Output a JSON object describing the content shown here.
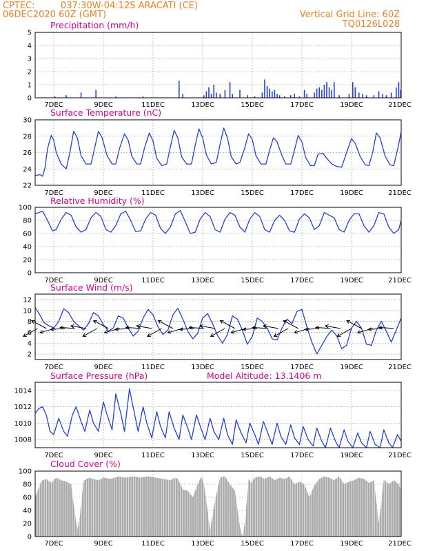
{
  "header": {
    "source": "CPTEC:",
    "location": "037:30W-04:12S   ARACATI (CE)",
    "run": "06DEC2020 60Z (GMT)",
    "grid_line": "Vertical Grid Line: 60Z",
    "code": "TQ0126L028"
  },
  "colors": {
    "header": "#f08020",
    "title": "#e0008c",
    "series": "#1f3fe0",
    "cloud": "#aaaaaa",
    "wind_vector": "#000000"
  },
  "chart_data": [
    {
      "id": "precip",
      "type": "bar",
      "title": "Precipitation (mm/h)",
      "ylim": [
        0,
        5
      ],
      "yticks": [
        0,
        1,
        2,
        3,
        4,
        5
      ],
      "xlim": [
        6.25,
        21
      ],
      "xticks": [
        "7DEC",
        "9DEC",
        "11DEC",
        "13DEC",
        "15DEC",
        "17DEC",
        "19DEC",
        "21DEC"
      ],
      "grid": true,
      "values_day_mm": [
        [
          7.05,
          0.1
        ],
        [
          7.5,
          0.2
        ],
        [
          8.1,
          0.4
        ],
        [
          8.7,
          0.6
        ],
        [
          9.5,
          0.1
        ],
        [
          10.6,
          0.1
        ],
        [
          12.05,
          1.3
        ],
        [
          12.2,
          0.3
        ],
        [
          13.05,
          0.2
        ],
        [
          13.15,
          0.5
        ],
        [
          13.25,
          0.8
        ],
        [
          13.35,
          0.3
        ],
        [
          13.45,
          1.0
        ],
        [
          13.55,
          0.4
        ],
        [
          13.7,
          0.3
        ],
        [
          13.9,
          0.6
        ],
        [
          14.1,
          1.2
        ],
        [
          14.2,
          0.3
        ],
        [
          14.5,
          0.6
        ],
        [
          14.8,
          0.2
        ],
        [
          15.1,
          0.1
        ],
        [
          15.4,
          0.4
        ],
        [
          15.5,
          1.4
        ],
        [
          15.6,
          0.9
        ],
        [
          15.7,
          0.7
        ],
        [
          15.8,
          0.5
        ],
        [
          15.9,
          0.6
        ],
        [
          16.0,
          0.3
        ],
        [
          16.1,
          0.2
        ],
        [
          16.3,
          0.1
        ],
        [
          16.55,
          0.2
        ],
        [
          16.7,
          0.3
        ],
        [
          16.9,
          0.1
        ],
        [
          17.1,
          0.6
        ],
        [
          17.2,
          0.3
        ],
        [
          17.5,
          0.4
        ],
        [
          17.6,
          0.7
        ],
        [
          17.7,
          0.8
        ],
        [
          17.8,
          0.6
        ],
        [
          17.9,
          1.0
        ],
        [
          18.0,
          1.2
        ],
        [
          18.1,
          0.8
        ],
        [
          18.2,
          0.6
        ],
        [
          18.3,
          1.2
        ],
        [
          18.5,
          0.2
        ],
        [
          18.9,
          0.3
        ],
        [
          19.05,
          1.2
        ],
        [
          19.15,
          0.8
        ],
        [
          19.3,
          0.4
        ],
        [
          19.45,
          0.3
        ],
        [
          19.6,
          0.2
        ],
        [
          19.9,
          0.2
        ],
        [
          20.1,
          0.5
        ],
        [
          20.25,
          0.3
        ],
        [
          20.4,
          0.2
        ],
        [
          20.6,
          0.4
        ],
        [
          20.8,
          0.8
        ],
        [
          20.9,
          1.2
        ],
        [
          20.98,
          0.6
        ]
      ]
    },
    {
      "id": "temp",
      "type": "line",
      "title": "Surface Temperature (nC)",
      "ylim": [
        22,
        30
      ],
      "yticks": [
        22,
        24,
        26,
        28,
        30
      ],
      "xlim": [
        6.25,
        21
      ],
      "xticks": [
        "7DEC",
        "9DEC",
        "11DEC",
        "13DEC",
        "15DEC",
        "17DEC",
        "19DEC",
        "21DEC"
      ],
      "grid": true,
      "x_days": [
        6.25,
        6.45,
        6.55,
        6.65,
        6.75,
        6.9,
        7.0,
        7.1,
        7.3,
        7.5,
        7.65,
        7.8,
        7.95,
        8.1,
        8.3,
        8.5,
        8.65,
        8.8,
        8.95,
        9.15,
        9.35,
        9.5,
        9.65,
        9.85,
        10.0,
        10.15,
        10.35,
        10.5,
        10.65,
        10.85,
        11.0,
        11.15,
        11.35,
        11.55,
        11.7,
        11.85,
        12.0,
        12.15,
        12.35,
        12.55,
        12.7,
        12.85,
        13.0,
        13.15,
        13.35,
        13.55,
        13.7,
        13.85,
        14.0,
        14.15,
        14.35,
        14.5,
        14.7,
        14.85,
        15.0,
        15.15,
        15.35,
        15.55,
        15.7,
        15.85,
        16.0,
        16.2,
        16.35,
        16.55,
        16.7,
        16.85,
        17.0,
        17.15,
        17.35,
        17.5,
        17.65,
        17.85,
        18.0,
        18.2,
        18.4,
        18.6,
        18.8,
        19.0,
        19.15,
        19.35,
        19.55,
        19.7,
        19.85,
        20.0,
        20.15,
        20.35,
        20.55,
        20.7,
        20.85,
        21.0
      ],
      "values": [
        23.2,
        23.3,
        23.1,
        24.2,
        26.5,
        28.1,
        27.5,
        26.0,
        24.6,
        24.0,
        26.0,
        28.6,
        27.8,
        25.6,
        24.6,
        24.6,
        26.6,
        28.6,
        27.8,
        25.6,
        24.6,
        24.6,
        26.5,
        28.3,
        27.5,
        25.5,
        24.6,
        24.6,
        26.5,
        28.4,
        27.4,
        25.3,
        24.4,
        24.6,
        26.7,
        28.7,
        27.8,
        25.5,
        24.6,
        24.6,
        26.9,
        28.9,
        27.8,
        25.7,
        24.6,
        24.8,
        27.0,
        29.0,
        27.8,
        25.5,
        24.6,
        24.8,
        26.6,
        28.3,
        27.6,
        25.6,
        24.6,
        24.6,
        26.3,
        27.8,
        27.3,
        25.6,
        24.6,
        24.6,
        26.3,
        28.1,
        27.3,
        25.4,
        24.4,
        24.4,
        25.8,
        25.9,
        25.3,
        24.6,
        24.3,
        24.2,
        26.0,
        27.7,
        27.1,
        25.5,
        24.5,
        24.4,
        26.0,
        28.4,
        27.8,
        25.6,
        24.5,
        24.4,
        26.3,
        28.5
      ]
    },
    {
      "id": "rh",
      "type": "line",
      "title": "Relative Humidity (%)",
      "ylim": [
        0,
        100
      ],
      "yticks": [
        0,
        20,
        40,
        60,
        80,
        100
      ],
      "xlim": [
        6.25,
        21
      ],
      "xticks": [
        "7DEC",
        "9DEC",
        "11DEC",
        "13DEC",
        "15DEC",
        "17DEC",
        "19DEC",
        "21DEC"
      ],
      "grid": true,
      "x_days": [
        6.25,
        6.4,
        6.55,
        6.75,
        6.95,
        7.1,
        7.3,
        7.5,
        7.7,
        7.9,
        8.1,
        8.3,
        8.5,
        8.7,
        8.9,
        9.1,
        9.3,
        9.5,
        9.7,
        9.9,
        10.1,
        10.3,
        10.5,
        10.7,
        10.9,
        11.1,
        11.3,
        11.5,
        11.7,
        11.9,
        12.1,
        12.3,
        12.5,
        12.7,
        12.9,
        13.1,
        13.3,
        13.5,
        13.7,
        13.9,
        14.1,
        14.3,
        14.5,
        14.7,
        14.9,
        15.1,
        15.3,
        15.5,
        15.7,
        15.9,
        16.1,
        16.3,
        16.5,
        16.7,
        16.9,
        17.1,
        17.3,
        17.5,
        17.7,
        17.9,
        18.1,
        18.3,
        18.5,
        18.7,
        18.9,
        19.1,
        19.3,
        19.5,
        19.7,
        19.9,
        20.1,
        20.3,
        20.5,
        20.7,
        20.9,
        21.0
      ],
      "values": [
        90,
        92,
        94,
        80,
        64,
        66,
        82,
        92,
        88,
        70,
        62,
        66,
        84,
        92,
        86,
        66,
        62,
        72,
        90,
        94,
        80,
        63,
        64,
        82,
        92,
        88,
        68,
        60,
        70,
        90,
        95,
        78,
        60,
        62,
        82,
        92,
        86,
        66,
        62,
        82,
        92,
        88,
        70,
        62,
        82,
        92,
        86,
        66,
        62,
        80,
        88,
        80,
        64,
        62,
        82,
        90,
        84,
        66,
        72,
        92,
        88,
        84,
        66,
        62,
        80,
        90,
        90,
        72,
        62,
        72,
        92,
        90,
        70,
        60,
        66,
        80
      ]
    },
    {
      "id": "wind",
      "type": "line",
      "title": "Surface Wind (m/s)",
      "ylim": [
        1,
        13
      ],
      "yticks": [
        2,
        4,
        6,
        8,
        10,
        12
      ],
      "xlim": [
        6.25,
        21
      ],
      "xticks": [
        "7DEC",
        "9DEC",
        "11DEC",
        "13DEC",
        "15DEC",
        "17DEC",
        "19DEC",
        "21DEC"
      ],
      "grid": true,
      "x_days": [
        6.25,
        6.4,
        6.6,
        6.8,
        7.0,
        7.2,
        7.4,
        7.6,
        7.8,
        8.0,
        8.2,
        8.4,
        8.6,
        8.8,
        9.0,
        9.2,
        9.4,
        9.6,
        9.8,
        10.0,
        10.2,
        10.4,
        10.6,
        10.8,
        11.0,
        11.2,
        11.4,
        11.6,
        11.8,
        12.0,
        12.2,
        12.4,
        12.6,
        12.8,
        13.0,
        13.2,
        13.4,
        13.6,
        13.8,
        14.0,
        14.2,
        14.4,
        14.6,
        14.8,
        15.0,
        15.2,
        15.4,
        15.6,
        15.8,
        16.0,
        16.2,
        16.4,
        16.6,
        16.8,
        17.0,
        17.2,
        17.4,
        17.6,
        17.8,
        18.0,
        18.2,
        18.4,
        18.6,
        18.8,
        19.0,
        19.2,
        19.4,
        19.6,
        19.8,
        20.0,
        20.2,
        20.4,
        20.6,
        20.8,
        21.0
      ],
      "values": [
        10.5,
        9.5,
        7.8,
        7.2,
        6.8,
        8.0,
        10.3,
        9.6,
        8.0,
        7.2,
        6.4,
        7.6,
        9.6,
        9.0,
        7.4,
        6.2,
        6.8,
        9.0,
        8.6,
        6.8,
        5.3,
        6.2,
        8.6,
        10.2,
        9.2,
        7.0,
        5.6,
        6.4,
        9.2,
        10.4,
        8.4,
        6.2,
        4.8,
        5.8,
        8.6,
        9.4,
        7.6,
        5.4,
        4.0,
        5.6,
        9.0,
        8.4,
        6.4,
        3.8,
        5.2,
        8.6,
        8.0,
        6.8,
        4.8,
        4.6,
        6.8,
        8.4,
        7.6,
        9.8,
        10.2,
        7.0,
        4.2,
        2.0,
        3.6,
        5.2,
        6.4,
        5.4,
        3.0,
        3.6,
        6.8,
        8.0,
        6.8,
        3.8,
        3.6,
        6.4,
        8.0,
        6.2,
        4.2,
        6.4,
        8.6
      ],
      "vectors_day": [
        6.35,
        6.7,
        7.05,
        7.45,
        7.85,
        8.3,
        8.75,
        9.2,
        9.65,
        10.05,
        10.5,
        10.95,
        11.35,
        11.8,
        12.2,
        12.65,
        13.05,
        13.5,
        13.9,
        14.3,
        14.75,
        15.2,
        15.6,
        16.05,
        16.45,
        16.85,
        17.3,
        17.7,
        18.15,
        18.55,
        19.0,
        19.4,
        19.85,
        20.25,
        20.7
      ]
    },
    {
      "id": "pressure",
      "type": "line",
      "title": "Surface Pressure (hPa)",
      "annotation": "Model Altitude: 13.1406 m",
      "ylim": [
        1007,
        1015
      ],
      "yticks": [
        1008,
        1010,
        1012,
        1014
      ],
      "xlim": [
        6.25,
        21
      ],
      "xticks": [
        "7DEC",
        "9DEC",
        "11DEC",
        "13DEC",
        "15DEC",
        "17DEC",
        "19DEC",
        "21DEC"
      ],
      "grid": true,
      "x_days": [
        6.25,
        6.4,
        6.55,
        6.7,
        6.85,
        7.0,
        7.2,
        7.4,
        7.55,
        7.75,
        7.9,
        8.1,
        8.25,
        8.45,
        8.6,
        8.8,
        9.0,
        9.15,
        9.35,
        9.5,
        9.7,
        9.85,
        10.05,
        10.25,
        10.4,
        10.6,
        10.75,
        10.95,
        11.15,
        11.3,
        11.5,
        11.65,
        11.85,
        12.05,
        12.2,
        12.4,
        12.55,
        12.75,
        12.95,
        13.1,
        13.3,
        13.45,
        13.65,
        13.85,
        14.0,
        14.2,
        14.35,
        14.55,
        14.75,
        14.9,
        15.1,
        15.25,
        15.45,
        15.65,
        15.8,
        16.0,
        16.15,
        16.35,
        16.55,
        16.7,
        16.9,
        17.05,
        17.25,
        17.45,
        17.6,
        17.8,
        17.95,
        18.15,
        18.35,
        18.5,
        18.7,
        18.85,
        19.05,
        19.25,
        19.4,
        19.6,
        19.75,
        19.95,
        20.15,
        20.3,
        20.5,
        20.65,
        20.85,
        21.0
      ],
      "values": [
        1011.2,
        1011.8,
        1012.0,
        1011.0,
        1009.0,
        1008.6,
        1010.6,
        1009.0,
        1008.4,
        1011.0,
        1012.0,
        1010.2,
        1009.0,
        1011.6,
        1010.0,
        1009.0,
        1012.6,
        1011.0,
        1009.2,
        1013.6,
        1011.2,
        1009.0,
        1014.2,
        1011.2,
        1009.0,
        1012.0,
        1010.0,
        1008.2,
        1011.4,
        1009.6,
        1008.2,
        1011.4,
        1009.4,
        1008.0,
        1011.0,
        1009.4,
        1008.0,
        1011.0,
        1009.2,
        1008.0,
        1010.6,
        1009.0,
        1008.0,
        1010.6,
        1008.6,
        1007.4,
        1010.4,
        1008.8,
        1007.6,
        1010.0,
        1008.6,
        1007.4,
        1010.2,
        1008.6,
        1007.4,
        1010.0,
        1008.4,
        1007.4,
        1009.8,
        1008.2,
        1007.4,
        1009.6,
        1008.0,
        1007.2,
        1009.4,
        1007.8,
        1007.0,
        1009.4,
        1007.8,
        1006.9,
        1009.2,
        1007.8,
        1006.8,
        1008.8,
        1007.6,
        1006.8,
        1009.0,
        1007.4,
        1006.9,
        1009.2,
        1007.6,
        1007.0,
        1008.6,
        1007.8
      ]
    },
    {
      "id": "cloud",
      "type": "area",
      "title": "Cloud Cover (%)",
      "ylim": [
        0,
        100
      ],
      "yticks": [
        0,
        20,
        40,
        60,
        80,
        100
      ],
      "xlim": [
        6.25,
        21
      ],
      "xticks": [
        "7DEC",
        "9DEC",
        "11DEC",
        "13DEC",
        "15DEC",
        "17DEC",
        "19DEC",
        "21DEC"
      ],
      "grid": true,
      "x_days": [
        6.25,
        6.35,
        6.5,
        6.7,
        6.9,
        7.1,
        7.3,
        7.5,
        7.7,
        7.85,
        7.95,
        8.05,
        8.2,
        8.4,
        8.6,
        8.8,
        9.0,
        9.3,
        9.6,
        9.9,
        10.2,
        10.5,
        10.8,
        11.1,
        11.4,
        11.7,
        11.9,
        12.0,
        12.2,
        12.4,
        12.6,
        12.8,
        12.95,
        13.05,
        13.2,
        13.3,
        13.5,
        13.7,
        13.9,
        14.1,
        14.3,
        14.5,
        14.6,
        14.7,
        14.85,
        14.95,
        15.1,
        15.3,
        15.5,
        15.7,
        15.9,
        16.1,
        16.3,
        16.5,
        16.7,
        16.9,
        17.1,
        17.3,
        17.5,
        17.7,
        17.9,
        18.1,
        18.3,
        18.5,
        18.7,
        18.9,
        19.1,
        19.3,
        19.5,
        19.7,
        19.9,
        20.1,
        20.3,
        20.5,
        20.7,
        20.9,
        21.0
      ],
      "values": [
        60,
        70,
        85,
        88,
        82,
        90,
        86,
        84,
        80,
        35,
        10,
        30,
        85,
        90,
        88,
        86,
        90,
        88,
        92,
        90,
        92,
        90,
        92,
        90,
        88,
        86,
        90,
        88,
        72,
        70,
        60,
        80,
        92,
        80,
        40,
        10,
        55,
        90,
        92,
        80,
        70,
        15,
        0,
        20,
        88,
        82,
        90,
        92,
        88,
        92,
        86,
        90,
        88,
        92,
        80,
        84,
        80,
        60,
        78,
        88,
        92,
        90,
        86,
        92,
        80,
        84,
        86,
        90,
        88,
        82,
        86,
        20,
        88,
        80,
        86,
        80,
        70
      ]
    }
  ]
}
